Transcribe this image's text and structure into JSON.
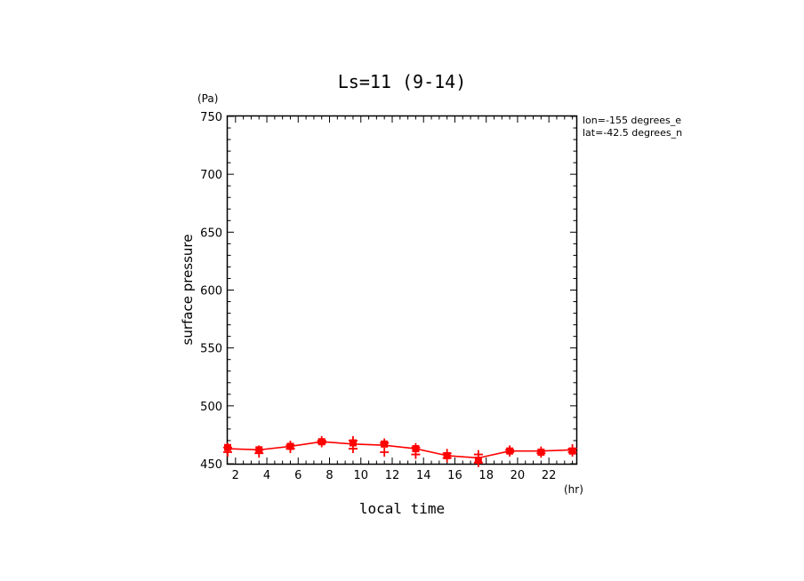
{
  "chart_data": {
    "type": "line",
    "title": "Ls=11 (9-14)",
    "xlabel": "local time",
    "ylabel": "surface pressure",
    "x_unit": "(hr)",
    "y_unit": "(Pa)",
    "annotations": [
      "lon=-155 degrees_e",
      "lat=-42.5 degrees_n"
    ],
    "xlim": [
      1.5,
      23.75
    ],
    "ylim": [
      450,
      750
    ],
    "x_ticks": [
      2,
      4,
      6,
      8,
      10,
      12,
      14,
      16,
      18,
      20,
      22
    ],
    "y_ticks": [
      450,
      500,
      550,
      600,
      650,
      700,
      750
    ],
    "color": "#ff0000",
    "series": [
      {
        "x": [
          1.5,
          3.5,
          5.5,
          7.5,
          9.5,
          11.5,
          13.5,
          15.5,
          17.5,
          19.5,
          21.5,
          23.5
        ],
        "values": [
          463,
          462,
          465,
          469,
          467,
          466,
          463,
          457,
          455,
          461,
          461,
          462
        ]
      }
    ],
    "markers": {
      "squares": [
        [
          1.5,
          464
        ],
        [
          3.5,
          462
        ],
        [
          5.5,
          465
        ],
        [
          7.5,
          469
        ],
        [
          9.5,
          468
        ],
        [
          11.5,
          467
        ],
        [
          13.5,
          463
        ],
        [
          15.5,
          457
        ],
        [
          17.5,
          453
        ],
        [
          19.5,
          461
        ],
        [
          21.5,
          460
        ],
        [
          23.5,
          461
        ]
      ],
      "pluses": [
        [
          1.5,
          460
        ],
        [
          1.5,
          464
        ],
        [
          3.5,
          459
        ],
        [
          3.5,
          462
        ],
        [
          5.5,
          463
        ],
        [
          5.5,
          466
        ],
        [
          7.5,
          468
        ],
        [
          7.5,
          470
        ],
        [
          9.5,
          463
        ],
        [
          9.5,
          470
        ],
        [
          11.5,
          460
        ],
        [
          11.5,
          468
        ],
        [
          13.5,
          458
        ],
        [
          13.5,
          464
        ],
        [
          15.5,
          455
        ],
        [
          15.5,
          459
        ],
        [
          17.5,
          451
        ],
        [
          17.5,
          458
        ],
        [
          19.5,
          460
        ],
        [
          19.5,
          462
        ],
        [
          21.5,
          459
        ],
        [
          21.5,
          461
        ],
        [
          23.5,
          460
        ],
        [
          23.5,
          463
        ]
      ]
    }
  }
}
